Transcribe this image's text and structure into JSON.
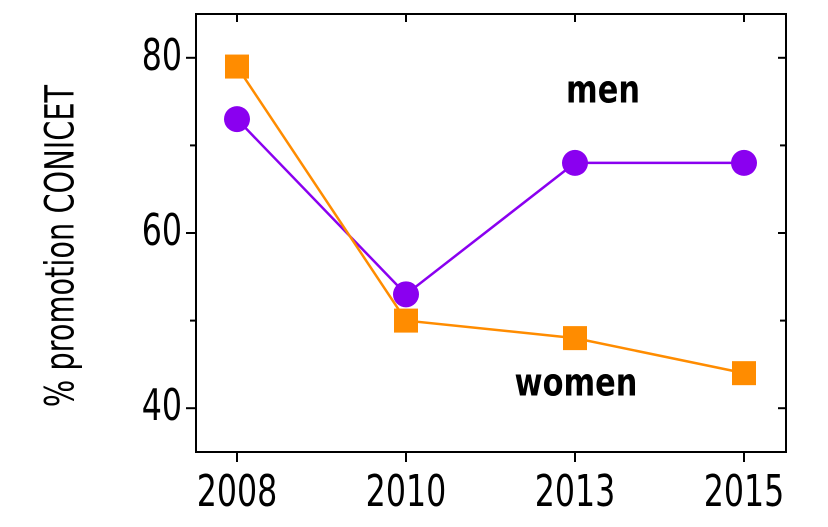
{
  "chart_data": {
    "type": "line",
    "ylabel": "% promotion CONICET",
    "categories": [
      "2008",
      "2010",
      "2013",
      "2015"
    ],
    "series": [
      {
        "name": "men",
        "color": "#8a00f0",
        "marker": "circle",
        "values": [
          73,
          53,
          68,
          68
        ]
      },
      {
        "name": "women",
        "color": "#ff8c00",
        "marker": "square",
        "values": [
          79,
          50,
          48,
          44
        ]
      }
    ],
    "ylim": [
      35,
      85
    ],
    "yticks": [
      40,
      60,
      80
    ],
    "minor_yticks": [
      50,
      70
    ]
  }
}
